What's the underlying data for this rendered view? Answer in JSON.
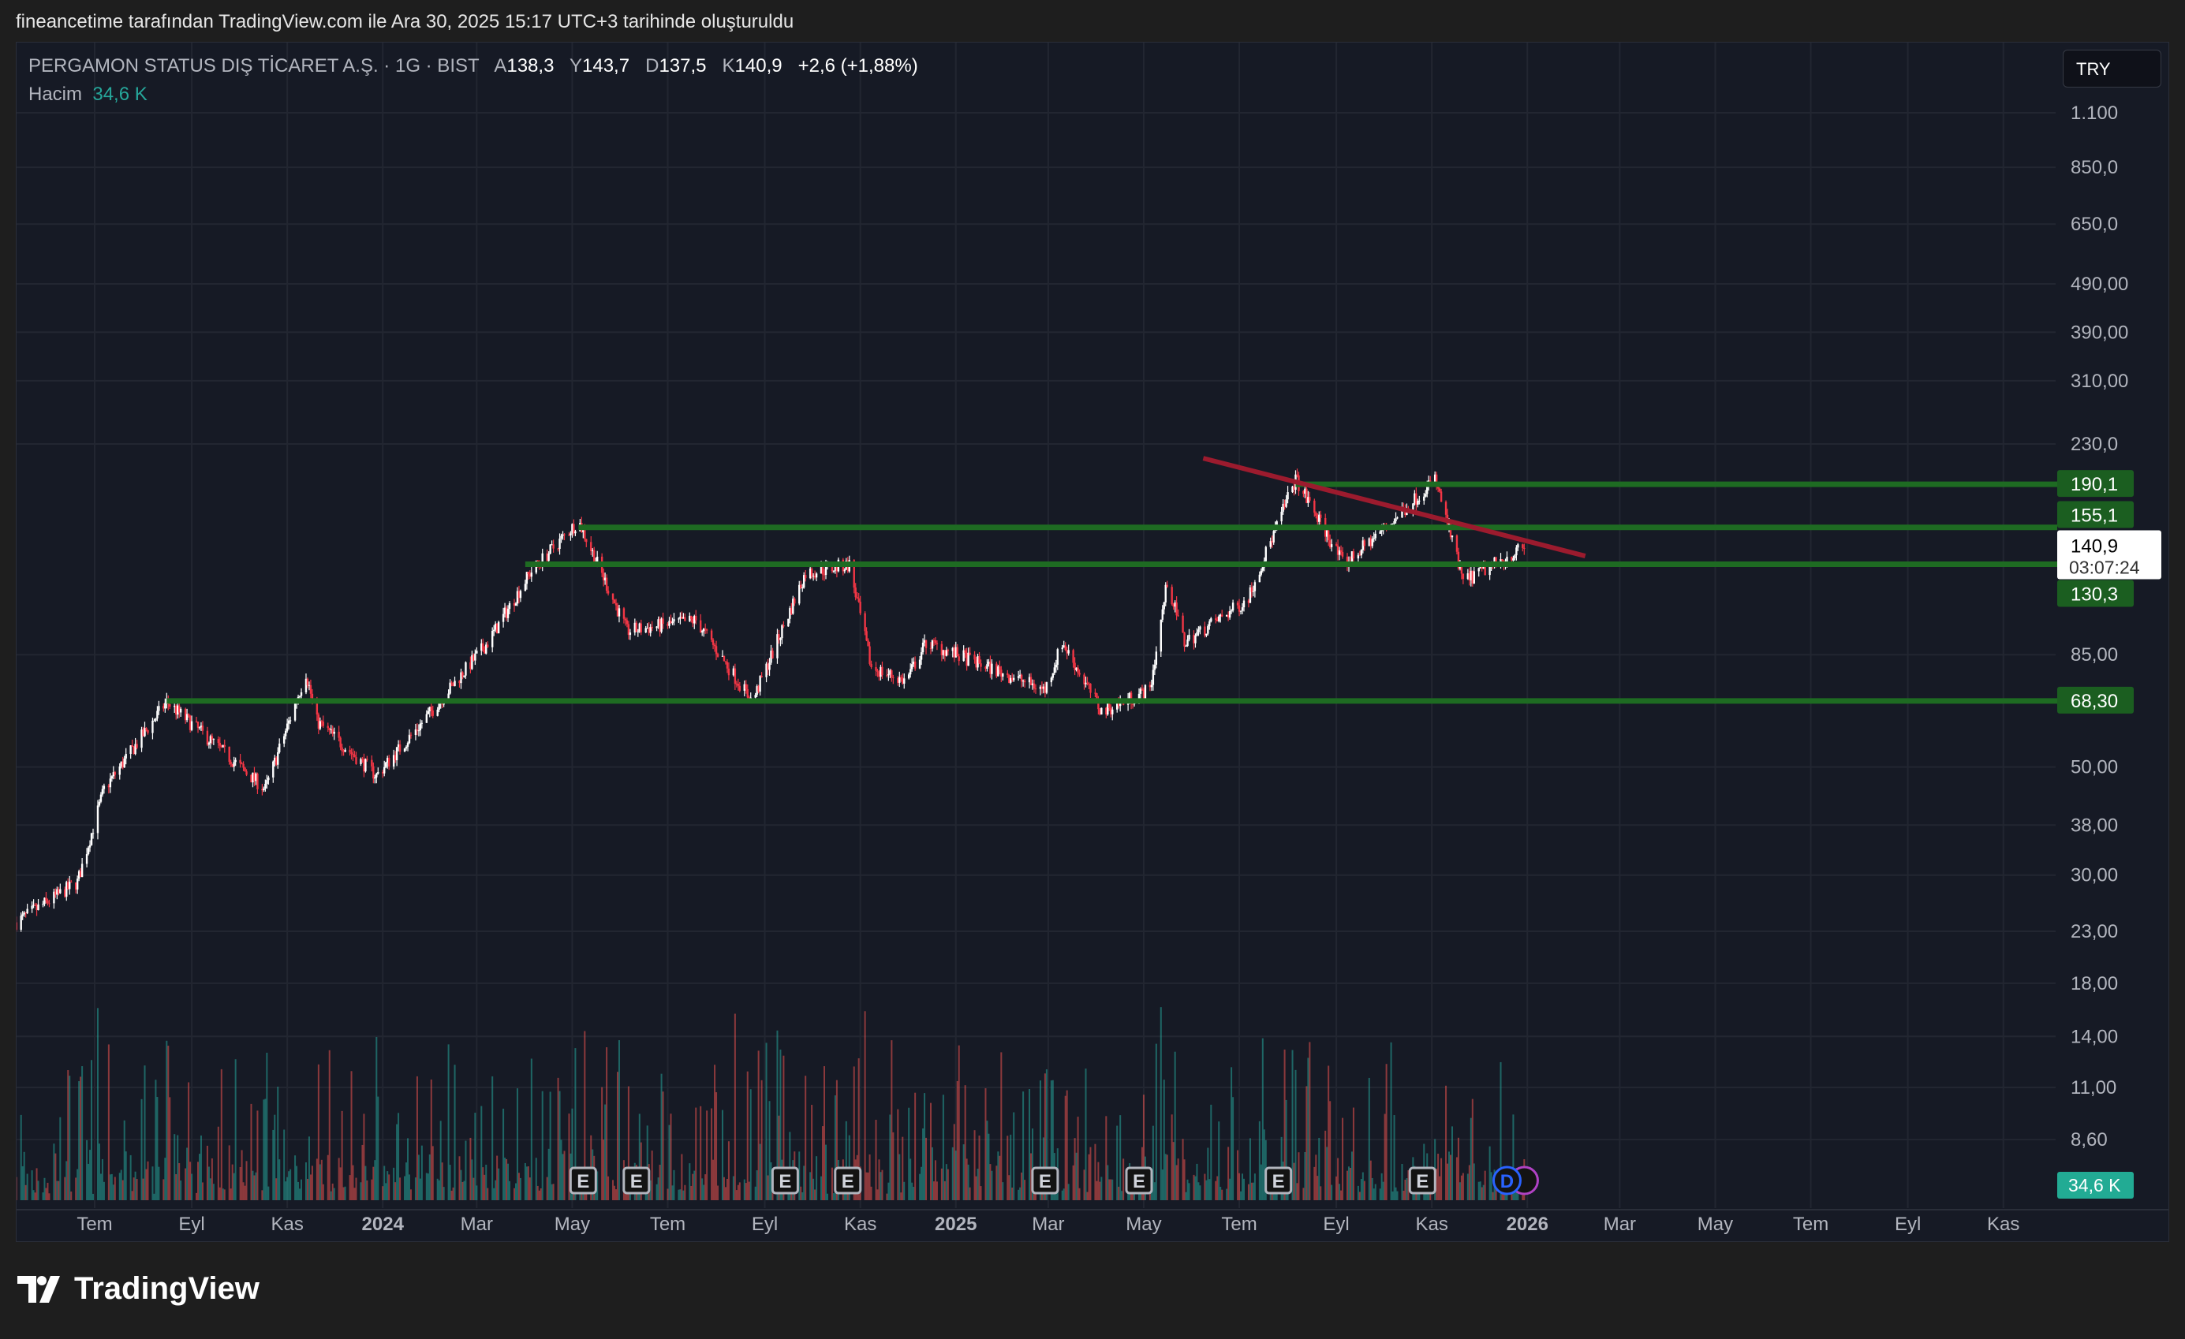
{
  "header": {
    "attribution": "fineancetime tarafından TradingView.com ile Ara 30, 2025 15:17 UTC+3 tarihinde oluşturuldu"
  },
  "legend": {
    "symbol": "PERGAMON STATUS DIŞ TİCARET A.Ş. · 1G · BIST",
    "open_label": "A",
    "open": "138,3",
    "high_label": "Y",
    "high": "143,7",
    "low_label": "D",
    "low": "137,5",
    "close_label": "K",
    "close": "140,9",
    "change": "+2,6 (+1,88%)",
    "volume_label": "Hacim",
    "volume": "34,6 K"
  },
  "currency_button": "TRY",
  "brand": "TradingView",
  "colors": {
    "up": "#ffffff",
    "down": "#f23645",
    "level": "#1b5e20",
    "trend": "#9c1b2e",
    "volume_up": "#26a69a",
    "volume_down": "#ef5350",
    "background": "#161a25"
  },
  "chart_data": {
    "type": "candlestick",
    "scale": "log",
    "grid": true,
    "price_ticks": [
      {
        "v": 1100,
        "t": "1.100"
      },
      {
        "v": 850,
        "t": "850,0"
      },
      {
        "v": 650,
        "t": "650,0"
      },
      {
        "v": 490,
        "t": "490,00"
      },
      {
        "v": 390,
        "t": "390,00"
      },
      {
        "v": 310,
        "t": "310,00"
      },
      {
        "v": 230,
        "t": "230,0"
      },
      {
        "v": 85,
        "t": "85,00"
      },
      {
        "v": 50,
        "t": "50,00"
      },
      {
        "v": 38,
        "t": "38,00"
      },
      {
        "v": 30,
        "t": "30,00"
      },
      {
        "v": 23,
        "t": "23,00"
      },
      {
        "v": 18,
        "t": "18,00"
      },
      {
        "v": 14,
        "t": "14,00"
      },
      {
        "v": 11,
        "t": "11,00"
      },
      {
        "v": 8.6,
        "t": "8,60"
      }
    ],
    "time_ticks": [
      {
        "d": "2023-07-01",
        "t": "Tem"
      },
      {
        "d": "2023-09-01",
        "t": "Eyl"
      },
      {
        "d": "2023-11-01",
        "t": "Kas"
      },
      {
        "d": "2024-01-01",
        "t": "2024",
        "bold": true
      },
      {
        "d": "2024-03-01",
        "t": "Mar"
      },
      {
        "d": "2024-05-01",
        "t": "May"
      },
      {
        "d": "2024-07-01",
        "t": "Tem"
      },
      {
        "d": "2024-09-01",
        "t": "Eyl"
      },
      {
        "d": "2024-11-01",
        "t": "Kas"
      },
      {
        "d": "2025-01-01",
        "t": "2025",
        "bold": true
      },
      {
        "d": "2025-03-01",
        "t": "Mar"
      },
      {
        "d": "2025-05-01",
        "t": "May"
      },
      {
        "d": "2025-07-01",
        "t": "Tem"
      },
      {
        "d": "2025-09-01",
        "t": "Eyl"
      },
      {
        "d": "2025-11-01",
        "t": "Kas"
      },
      {
        "d": "2026-01-01",
        "t": "2026",
        "bold": true
      },
      {
        "d": "2026-03-01",
        "t": "Mar"
      },
      {
        "d": "2026-05-01",
        "t": "May"
      },
      {
        "d": "2026-07-01",
        "t": "Tem"
      },
      {
        "d": "2026-09-01",
        "t": "Eyl"
      },
      {
        "d": "2026-11-01",
        "t": "Kas"
      }
    ],
    "price_path": [
      [
        "2023-05-12",
        24
      ],
      [
        "2023-06-20",
        29
      ],
      [
        "2023-07-07",
        45
      ],
      [
        "2023-08-16",
        68
      ],
      [
        "2023-10-18",
        45
      ],
      [
        "2023-11-13",
        78
      ],
      [
        "2023-11-20",
        62
      ],
      [
        "2023-12-28",
        48
      ],
      [
        "2024-01-23",
        60
      ],
      [
        "2024-03-08",
        90
      ],
      [
        "2024-04-04",
        125
      ],
      [
        "2024-05-05",
        160
      ],
      [
        "2024-06-05",
        95
      ],
      [
        "2024-07-19",
        100
      ],
      [
        "2024-08-24",
        68
      ],
      [
        "2024-09-27",
        125
      ],
      [
        "2024-10-25",
        130
      ],
      [
        "2024-11-08",
        80
      ],
      [
        "2024-11-30",
        75
      ],
      [
        "2024-12-13",
        90
      ],
      [
        "2025-02-27",
        72
      ],
      [
        "2025-03-10",
        90
      ],
      [
        "2025-04-04",
        65
      ],
      [
        "2025-05-05",
        72
      ],
      [
        "2025-05-16",
        120
      ],
      [
        "2025-05-27",
        90
      ],
      [
        "2025-07-06",
        110
      ],
      [
        "2025-08-06",
        195
      ],
      [
        "2025-09-06",
        130
      ],
      [
        "2025-10-07",
        160
      ],
      [
        "2025-11-03",
        195
      ],
      [
        "2025-11-21",
        120
      ],
      [
        "2025-12-30",
        140.9
      ]
    ],
    "levels": [
      {
        "price": 190.1,
        "label": "190,1",
        "from": "2025-08-06"
      },
      {
        "price": 155.1,
        "label": "155,1",
        "from": "2024-05-05"
      },
      {
        "price": 130.3,
        "label": "130,3",
        "from": "2024-04-01"
      },
      {
        "price": 68.3,
        "label": "68,30",
        "from": "2023-08-16"
      }
    ],
    "trendline": {
      "from": [
        "2025-06-08",
        215
      ],
      "to": [
        "2026-02-07",
        135.5
      ]
    },
    "last_price": {
      "label": "140,9",
      "countdown": "03:07:24",
      "price": 140.9
    },
    "volume_label": "34,6 K",
    "events": [
      {
        "d": "2024-05-08",
        "t": "E"
      },
      {
        "d": "2024-06-11",
        "t": "E"
      },
      {
        "d": "2024-09-14",
        "t": "E"
      },
      {
        "d": "2024-10-24",
        "t": "E"
      },
      {
        "d": "2025-02-27",
        "t": "E"
      },
      {
        "d": "2025-04-28",
        "t": "E"
      },
      {
        "d": "2025-07-26",
        "t": "E"
      },
      {
        "d": "2025-10-26",
        "t": "E"
      },
      {
        "d": "2025-12-19",
        "t": "D"
      }
    ]
  }
}
